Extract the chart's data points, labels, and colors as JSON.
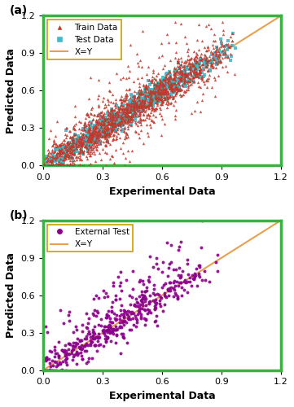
{
  "seed": 42,
  "n_train": 1800,
  "n_test": 700,
  "n_external": 500,
  "xlim": [
    0,
    1.2
  ],
  "ylim": [
    0,
    1.2
  ],
  "xticks": [
    0,
    0.3,
    0.6,
    0.9,
    1.2
  ],
  "yticks": [
    0,
    0.3,
    0.6,
    0.9,
    1.2
  ],
  "train_color": "#C0392B",
  "test_color": "#45B8C8",
  "external_color": "#8B008B",
  "line_color": "#E8A050",
  "border_color": "#3CB043",
  "xlabel": "Experimental Data",
  "ylabel": "Predicted Data",
  "label_train": "Train Data",
  "label_test": "Test Data",
  "label_external": "External Test",
  "label_line": "X=Y",
  "marker_size_train": 6,
  "marker_size_test": 6,
  "marker_size_external": 8,
  "figsize": [
    3.61,
    5.0
  ],
  "dpi": 100
}
